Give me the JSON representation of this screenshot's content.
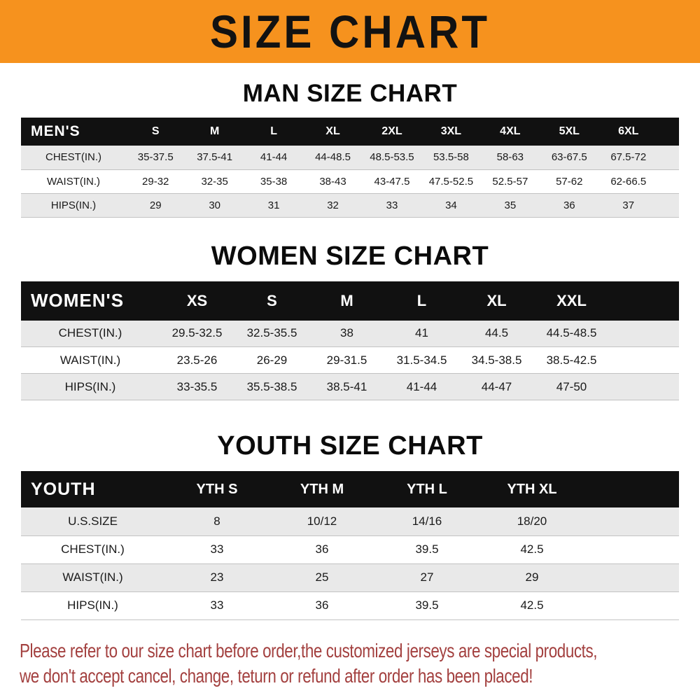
{
  "banner": {
    "title": "SIZE CHART"
  },
  "colors": {
    "banner_bg": "#f6921e",
    "header_row_bg": "#111111",
    "row_shade": "#e9e9e9",
    "footer_text": "#a3403f"
  },
  "chart_data": [
    {
      "type": "table",
      "title": "MAN SIZE CHART",
      "corner_label": "MEN'S",
      "columns": [
        "S",
        "M",
        "L",
        "XL",
        "2XL",
        "3XL",
        "4XL",
        "5XL",
        "6XL"
      ],
      "rows": [
        {
          "label": "CHEST(IN.)",
          "values": [
            "35-37.5",
            "37.5-41",
            "41-44",
            "44-48.5",
            "48.5-53.5",
            "53.5-58",
            "58-63",
            "63-67.5",
            "67.5-72"
          ]
        },
        {
          "label": "WAIST(IN.)",
          "values": [
            "29-32",
            "32-35",
            "35-38",
            "38-43",
            "43-47.5",
            "47.5-52.5",
            "52.5-57",
            "57-62",
            "62-66.5"
          ]
        },
        {
          "label": "HIPS(IN.)",
          "values": [
            "29",
            "30",
            "31",
            "32",
            "33",
            "34",
            "35",
            "36",
            "37"
          ]
        }
      ]
    },
    {
      "type": "table",
      "title": "WOMEN SIZE CHART",
      "corner_label": "WOMEN'S",
      "columns": [
        "XS",
        "S",
        "M",
        "L",
        "XL",
        "XXL"
      ],
      "rows": [
        {
          "label": "CHEST(IN.)",
          "values": [
            "29.5-32.5",
            "32.5-35.5",
            "38",
            "41",
            "44.5",
            "44.5-48.5"
          ]
        },
        {
          "label": "WAIST(IN.)",
          "values": [
            "23.5-26",
            "26-29",
            "29-31.5",
            "31.5-34.5",
            "34.5-38.5",
            "38.5-42.5"
          ]
        },
        {
          "label": "HIPS(IN.)",
          "values": [
            "33-35.5",
            "35.5-38.5",
            "38.5-41",
            "41-44",
            "44-47",
            "47-50"
          ]
        }
      ]
    },
    {
      "type": "table",
      "title": "YOUTH SIZE CHART",
      "corner_label": "YOUTH",
      "columns": [
        "YTH S",
        "YTH M",
        "YTH L",
        "YTH XL"
      ],
      "rows": [
        {
          "label": "U.S.SIZE",
          "values": [
            "8",
            "10/12",
            "14/16",
            "18/20"
          ]
        },
        {
          "label": "CHEST(IN.)",
          "values": [
            "33",
            "36",
            "39.5",
            "42.5"
          ]
        },
        {
          "label": "WAIST(IN.)",
          "values": [
            "23",
            "25",
            "27",
            "29"
          ]
        },
        {
          "label": "HIPS(IN.)",
          "values": [
            "33",
            "36",
            "39.5",
            "42.5"
          ]
        }
      ]
    }
  ],
  "footer": {
    "line1": "Please refer to our size chart before order,the customized jerseys are special products,",
    "line2": "we don't accept cancel, change, teturn or refund after order has been placed!"
  }
}
